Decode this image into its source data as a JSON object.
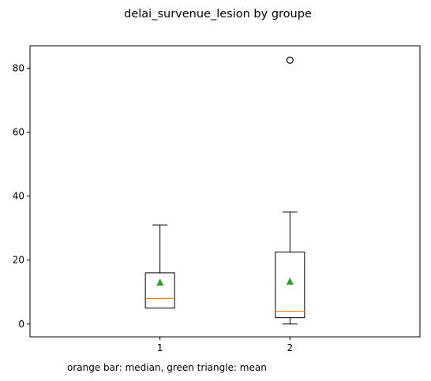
{
  "chart_data": {
    "type": "box",
    "title": "delai_survenue_lesion by groupe",
    "caption": "orange bar: median, green triangle: mean",
    "xlabel": "",
    "ylabel": "",
    "categories": [
      "1",
      "2"
    ],
    "ylim": [
      -4,
      87
    ],
    "yticks": [
      "0",
      "20",
      "40",
      "60",
      "80"
    ],
    "grid": false,
    "boxes": [
      {
        "category": "1",
        "whisker_low": 5,
        "q1": 5,
        "median": 8,
        "q3": 16,
        "whisker_high": 31,
        "mean": 13,
        "outliers": []
      },
      {
        "category": "2",
        "whisker_low": 0,
        "q1": 2,
        "median": 4,
        "q3": 22.5,
        "whisker_high": 35,
        "mean": 13.3,
        "outliers": [
          82.5
        ]
      }
    ],
    "colors": {
      "median": "#ff7f0e",
      "mean": "#2ca02c",
      "box": "#000000"
    }
  }
}
